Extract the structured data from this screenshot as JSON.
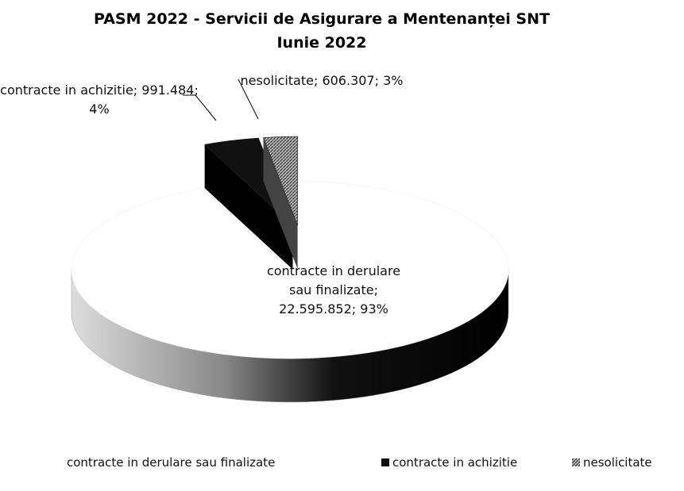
{
  "chart_data": {
    "type": "pie",
    "title": "PASM 2022  - Servicii de Asigurare a Mentenanței SNT",
    "subtitle": "Iunie 2022",
    "categories": [
      "contracte in derulare sau finalizate",
      "contracte in achizitie",
      "nesolicitate"
    ],
    "values": [
      22595852,
      991484,
      606307
    ],
    "value_labels": [
      "22.595.852",
      "991.484",
      "606.307"
    ],
    "percentages": [
      93,
      4,
      3
    ],
    "percentage_labels": [
      "93%",
      "4%",
      "3%"
    ],
    "label_separator": "; ",
    "colors": [
      "#ffffff",
      "#111111",
      "#777777"
    ],
    "legend": "bottom"
  }
}
